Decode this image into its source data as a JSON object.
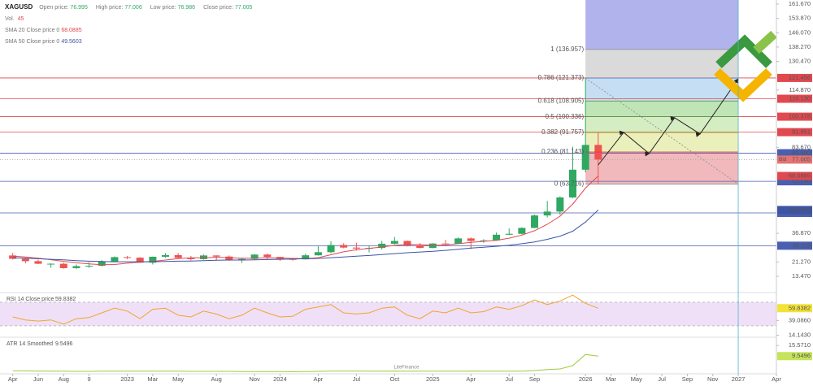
{
  "chart_data": [
    {
      "type": "candlestick",
      "symbol": "XAGUSD",
      "header": [
        {
          "label": "Open price:",
          "value": 76.995
        },
        {
          "label": "High price:",
          "value": 77.006
        },
        {
          "label": "Low price:",
          "value": 76.986
        },
        {
          "label": "Close price:",
          "value": 77.005
        }
      ],
      "volume": {
        "label": "Vol.",
        "value": 45
      },
      "bid_label": "Bid",
      "x": [
        "2022-04",
        "2022-05",
        "2022-06",
        "2022-07",
        "2022-08",
        "2022-09",
        "2022-10",
        "2022-11",
        "2022-12",
        "2023-01",
        "2023-02",
        "2023-03",
        "2023-04",
        "2023-05",
        "2023-06",
        "2023-07",
        "2023-08",
        "2023-09",
        "2023-10",
        "2023-11",
        "2023-12",
        "2024-01",
        "2024-02",
        "2024-03",
        "2024-04",
        "2024-05",
        "2024-06",
        "2024-07",
        "2024-08",
        "2024-09",
        "2024-10",
        "2024-11",
        "2024-12",
        "2025-01",
        "2025-02",
        "2025-03",
        "2025-04",
        "2025-05",
        "2025-06",
        "2025-07",
        "2025-08",
        "2025-09",
        "2025-10",
        "2025-11",
        "2025-12",
        "2026-01",
        "2026-02"
      ],
      "open": [
        24.8,
        23.0,
        21.7,
        20.3,
        20.3,
        17.9,
        19.0,
        19.2,
        21.5,
        23.9,
        23.6,
        20.9,
        24.1,
        25.0,
        23.5,
        22.8,
        24.8,
        24.2,
        22.3,
        22.9,
        25.3,
        24.0,
        22.9,
        22.7,
        24.9,
        26.6,
        30.5,
        29.1,
        28.6,
        28.9,
        31.2,
        32.7,
        30.3,
        28.9,
        31.3,
        31.2,
        34.1,
        32.7,
        33.0,
        36.1,
        36.6,
        39.8,
        46.6,
        48.7,
        56.4,
        71.5,
        85.0
      ],
      "high": [
        26.2,
        23.3,
        22.5,
        20.5,
        20.9,
        19.9,
        21.2,
        22.2,
        24.3,
        24.5,
        23.9,
        24.2,
        26.1,
        26.1,
        24.5,
        25.3,
        24.9,
        24.8,
        23.4,
        25.5,
        25.9,
        24.1,
        23.3,
        25.8,
        29.8,
        32.5,
        31.5,
        31.8,
        29.9,
        32.7,
        34.9,
        32.9,
        31.5,
        31.5,
        33.3,
        34.6,
        34.6,
        33.7,
        37.3,
        39.5,
        40.1,
        47.1,
        54.5,
        57.0,
        84.0,
        121.4,
        92.0
      ],
      "low": [
        22.6,
        20.5,
        20.1,
        18.1,
        17.6,
        17.5,
        18.1,
        18.8,
        21.4,
        22.8,
        20.8,
        19.9,
        23.6,
        23.0,
        22.1,
        22.5,
        22.2,
        21.9,
        20.7,
        22.5,
        22.5,
        21.9,
        22.0,
        22.6,
        24.7,
        26.0,
        28.7,
        27.5,
        26.5,
        28.0,
        30.8,
        29.7,
        28.7,
        28.7,
        31.1,
        31.0,
        28.3,
        31.7,
        32.8,
        35.9,
        36.2,
        39.6,
        45.5,
        46.9,
        56.0,
        70.0,
        64.0
      ],
      "close": [
        23.0,
        21.7,
        20.3,
        20.3,
        17.9,
        19.0,
        19.2,
        21.5,
        23.9,
        23.6,
        20.9,
        24.1,
        25.0,
        23.5,
        22.8,
        24.8,
        24.2,
        22.3,
        22.9,
        25.3,
        24.0,
        22.9,
        22.7,
        24.9,
        26.6,
        30.5,
        29.1,
        28.6,
        28.9,
        31.2,
        32.7,
        30.3,
        28.9,
        31.3,
        31.2,
        34.1,
        32.7,
        33.0,
        36.1,
        36.6,
        39.8,
        46.6,
        48.7,
        56.4,
        71.5,
        85.0,
        77.0
      ],
      "up_color": "#2fa862",
      "down_color": "#ef5350",
      "series": [
        {
          "name": "SMA 20 Close price 0",
          "color": "#e0494f",
          "current": 68.0885,
          "values": [
            24.5,
            24.0,
            23.3,
            22.5,
            21.6,
            20.8,
            20.2,
            19.8,
            19.9,
            20.6,
            21.2,
            21.6,
            22.3,
            23.1,
            23.5,
            23.5,
            23.8,
            23.6,
            23.3,
            23.3,
            23.6,
            23.4,
            23.2,
            23.1,
            23.6,
            25.2,
            26.8,
            27.9,
            28.7,
            29.4,
            30.3,
            30.8,
            30.7,
            30.3,
            30.5,
            31.2,
            31.9,
            32.5,
            33.0,
            34.2,
            35.9,
            38.3,
            41.8,
            46.2,
            52.8,
            61.5,
            68.0885
          ]
        },
        {
          "name": "SMA 50 Close price 0",
          "color": "#3c55a5",
          "current": 49.5603,
          "values": [
            23.5,
            23.3,
            23.0,
            22.7,
            22.4,
            22.0,
            21.7,
            21.5,
            21.4,
            21.4,
            21.4,
            21.4,
            21.5,
            21.7,
            21.8,
            22.0,
            22.2,
            22.3,
            22.3,
            22.4,
            22.6,
            22.7,
            22.9,
            23.0,
            23.2,
            23.6,
            24.0,
            24.4,
            24.8,
            25.3,
            25.8,
            26.3,
            26.7,
            27.1,
            27.6,
            28.2,
            28.8,
            29.3,
            29.8,
            30.4,
            31.2,
            32.2,
            33.6,
            35.3,
            38.0,
            43.0,
            49.5603
          ]
        }
      ],
      "xlim": [
        "2022-03",
        "2027-04"
      ],
      "xticks": [
        {
          "value": "2022-04",
          "label": "Apr"
        },
        {
          "value": "2022-06",
          "label": "Jun"
        },
        {
          "value": "2022-08",
          "label": "Aug"
        },
        {
          "value": "2022-10",
          "label": "9"
        },
        {
          "value": "2023-01",
          "label": "2023"
        },
        {
          "value": "2023-03",
          "label": "Mar"
        },
        {
          "value": "2023-05",
          "label": "May"
        },
        {
          "value": "2023-08",
          "label": "Aug"
        },
        {
          "value": "2023-11",
          "label": "Nov"
        },
        {
          "value": "2024-01",
          "label": "2024"
        },
        {
          "value": "2024-04",
          "label": "Apr"
        },
        {
          "value": "2024-07",
          "label": "Jul"
        },
        {
          "value": "2024-10",
          "label": "Oct"
        },
        {
          "value": "2025-01",
          "label": "2025"
        },
        {
          "value": "2025-04",
          "label": "Apr"
        },
        {
          "value": "2025-07",
          "label": "Jul"
        },
        {
          "value": "2025-09",
          "label": "Sep"
        },
        {
          "value": "2026-01",
          "label": "2026"
        },
        {
          "value": "2026-03",
          "label": "Mar"
        },
        {
          "value": "2026-05",
          "label": "May"
        },
        {
          "value": "2026-07",
          "label": "Jul"
        },
        {
          "value": "2026-09",
          "label": "Sep"
        },
        {
          "value": "2026-11",
          "label": "Nov"
        },
        {
          "value": "2027-01",
          "label": "2027"
        },
        {
          "value": "2027-04",
          "label": "Apr"
        }
      ],
      "ylim": [
        5.5,
        163.9
      ],
      "yticks": [
        {
          "value": 161.67,
          "label": "161.670"
        },
        {
          "value": 153.87,
          "label": "153.870"
        },
        {
          "value": 146.07,
          "label": "146.070"
        },
        {
          "value": 138.27,
          "label": "138.270"
        },
        {
          "value": 130.47,
          "label": "130.470"
        },
        {
          "value": 114.87,
          "label": "114.870"
        },
        {
          "value": 83.67,
          "label": "83.670"
        },
        {
          "value": 36.87,
          "label": "36.870"
        },
        {
          "value": 21.27,
          "label": "21.270"
        },
        {
          "value": 13.47,
          "label": "13.470"
        }
      ],
      "levels": [
        {
          "value": 121.456,
          "color": "#e0494f"
        },
        {
          "value": 110.13,
          "label": "110.130",
          "color": "#e0494f"
        },
        {
          "value": 100.378,
          "color": "#e0494f"
        },
        {
          "value": 91.951,
          "color": "#e0494f"
        },
        {
          "value": 80.48,
          "label": "80.480",
          "color": "#4a5fb0"
        },
        {
          "value": 65.19,
          "label": "65.190",
          "color": "#4a5fb0"
        },
        {
          "value": 47.982,
          "color": "#4a5fb0"
        },
        {
          "value": 30.118,
          "color": "#4a5fb0"
        }
      ],
      "fibonacci": {
        "start": "2026-01",
        "end": "2027-01",
        "top_color": "#b1b3ec",
        "levels": [
          {
            "price": 136.957,
            "label": "1 (136.957)",
            "color": "#8a8a8a",
            "fill": "#dadada"
          },
          {
            "price": 121.373,
            "label": "0.786 (121.373)",
            "color": "#4f86d1",
            "fill": "#c6def3"
          },
          {
            "price": 108.905,
            "label": "0.618 (108.905)",
            "color": "#43a047",
            "fill": "#bfe5b6"
          },
          {
            "price": 100.336,
            "label": "0.5 (100.336)",
            "color": "#43a047",
            "fill": "#d5edc2"
          },
          {
            "price": 91.757,
            "label": "0.382 (91.757)",
            "color": "#9e9d24",
            "fill": "#eaf0bb"
          },
          {
            "price": 81.143,
            "label": "0.236 (81.143)",
            "color": "#e53935",
            "fill": "#f2b9bd"
          },
          {
            "price": 63.716,
            "label": "0 (63.716)",
            "color": "#8a8a8a"
          }
        ]
      },
      "projection": {
        "x": [
          "2026-02",
          "2026-04",
          "2026-06",
          "2026-08",
          "2026-10",
          "2027-01"
        ],
        "values": [
          74.1,
          91.8,
          80.3,
          99.8,
          91.0,
          121.0
        ],
        "color": "#222222"
      },
      "watermark": "LiteFinance"
    },
    {
      "type": "line",
      "title": "RSI 14 Close price",
      "color": "#f0a52d",
      "band": [
        30,
        70
      ],
      "band_color": "#efe0f7",
      "values": [
        45,
        40,
        38,
        40,
        33,
        42,
        44,
        52,
        60,
        55,
        42,
        58,
        60,
        48,
        45,
        55,
        50,
        42,
        48,
        60,
        52,
        45,
        46,
        58,
        62,
        66,
        52,
        50,
        52,
        60,
        62,
        48,
        42,
        55,
        52,
        60,
        52,
        54,
        62,
        58,
        64,
        74,
        66,
        72,
        82,
        68,
        59.8382
      ],
      "ylim": [
        12,
        85
      ],
      "yticks": [
        {
          "value": 39.086,
          "label": "39.0860"
        },
        {
          "value": 14.143,
          "label": "14.1430"
        }
      ]
    },
    {
      "type": "line",
      "title": "ATR 14 Smoothed",
      "color": "#9ccc3c",
      "values": [
        1.2,
        1.2,
        1.1,
        1.0,
        1.0,
        0.9,
        0.9,
        1.0,
        1.0,
        1.0,
        1.0,
        1.0,
        1.0,
        1.0,
        0.9,
        0.9,
        0.9,
        0.9,
        0.8,
        0.8,
        0.8,
        0.8,
        0.7,
        0.8,
        0.9,
        1.1,
        1.1,
        1.1,
        1.0,
        1.0,
        1.1,
        1.0,
        1.0,
        1.0,
        1.0,
        1.0,
        1.1,
        1.0,
        1.0,
        1.0,
        1.0,
        1.4,
        2.0,
        2.3,
        4.2,
        10.5,
        9.5496
      ],
      "ylim": [
        0,
        19.8
      ],
      "yticks": [
        {
          "value": 15.571,
          "label": "15.5710"
        }
      ]
    }
  ]
}
